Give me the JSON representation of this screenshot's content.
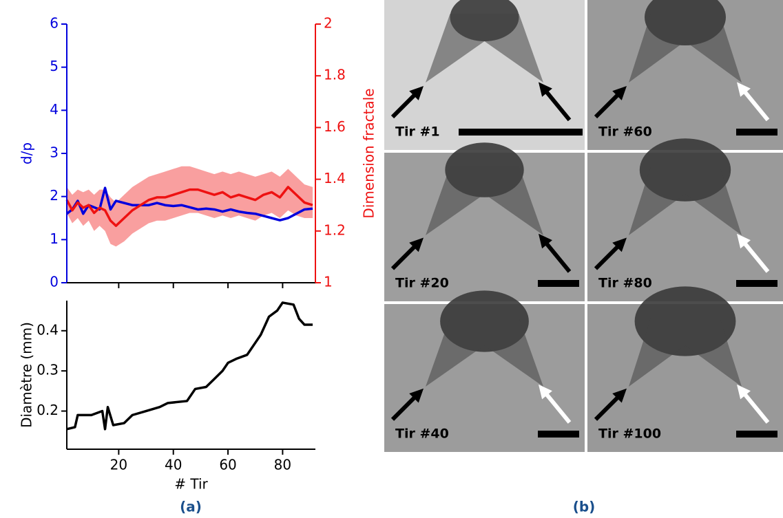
{
  "chart_data": [
    {
      "type": "line",
      "x": [
        1,
        3,
        5,
        7,
        9,
        11,
        13,
        15,
        17,
        19,
        22,
        25,
        28,
        31,
        34,
        37,
        40,
        43,
        46,
        49,
        52,
        55,
        58,
        61,
        64,
        67,
        70,
        73,
        76,
        79,
        82,
        85,
        88,
        91
      ],
      "xlim": [
        1,
        92
      ],
      "xticks": [
        20,
        40,
        60,
        80
      ],
      "ylabel": "d/p",
      "ylim": [
        0,
        6
      ],
      "yticks": [
        0,
        1,
        2,
        3,
        4,
        5,
        6
      ],
      "y2label": "Dimension fractale",
      "y2lim": [
        1,
        2
      ],
      "y2ticks": [
        1,
        1.2,
        1.4,
        1.6,
        1.8,
        2
      ],
      "series": [
        {
          "color": "#0000dd",
          "values": [
            1.6,
            1.7,
            1.9,
            1.6,
            1.8,
            1.75,
            1.7,
            2.2,
            1.7,
            1.9,
            1.85,
            1.8,
            1.8,
            1.8,
            1.85,
            1.8,
            1.78,
            1.8,
            1.75,
            1.7,
            1.72,
            1.7,
            1.65,
            1.7,
            1.65,
            1.62,
            1.6,
            1.55,
            1.5,
            1.45,
            1.5,
            1.6,
            1.7,
            1.72
          ]
        },
        {
          "color": "#ee1111",
          "band_color": "#f77f7f",
          "axis": "y2",
          "values": [
            1.32,
            1.28,
            1.31,
            1.29,
            1.3,
            1.27,
            1.29,
            1.28,
            1.24,
            1.22,
            1.25,
            1.28,
            1.3,
            1.32,
            1.33,
            1.33,
            1.34,
            1.35,
            1.36,
            1.36,
            1.35,
            1.34,
            1.35,
            1.33,
            1.34,
            1.33,
            1.32,
            1.34,
            1.35,
            1.33,
            1.37,
            1.34,
            1.31,
            1.3
          ],
          "lower": [
            1.27,
            1.23,
            1.25,
            1.22,
            1.24,
            1.2,
            1.22,
            1.2,
            1.15,
            1.14,
            1.16,
            1.19,
            1.21,
            1.23,
            1.24,
            1.24,
            1.25,
            1.26,
            1.27,
            1.27,
            1.26,
            1.25,
            1.26,
            1.25,
            1.26,
            1.25,
            1.24,
            1.26,
            1.27,
            1.25,
            1.28,
            1.26,
            1.25,
            1.25
          ],
          "upper": [
            1.37,
            1.34,
            1.36,
            1.35,
            1.36,
            1.34,
            1.36,
            1.36,
            1.33,
            1.31,
            1.34,
            1.37,
            1.39,
            1.41,
            1.42,
            1.43,
            1.44,
            1.45,
            1.45,
            1.44,
            1.43,
            1.42,
            1.43,
            1.42,
            1.43,
            1.42,
            1.41,
            1.42,
            1.43,
            1.41,
            1.44,
            1.41,
            1.38,
            1.37
          ]
        }
      ]
    },
    {
      "type": "line",
      "x": [
        1,
        4,
        5,
        7,
        10,
        14,
        15,
        16,
        18,
        22,
        25,
        30,
        35,
        38,
        45,
        48,
        52,
        55,
        58,
        60,
        63,
        67,
        70,
        72,
        75,
        78,
        80,
        84,
        86,
        88,
        91
      ],
      "xlim": [
        1,
        92
      ],
      "xticks": [
        20,
        40,
        60,
        80
      ],
      "xlabel": "# Tir",
      "ylabel": "Diamètre (mm)",
      "ylim": [
        0.105,
        0.475
      ],
      "yticks": [
        0.2,
        0.3,
        0.4
      ],
      "series": [
        {
          "color": "#000000",
          "values": [
            0.155,
            0.16,
            0.19,
            0.19,
            0.19,
            0.2,
            0.155,
            0.21,
            0.165,
            0.17,
            0.19,
            0.2,
            0.21,
            0.22,
            0.225,
            0.255,
            0.26,
            0.28,
            0.3,
            0.32,
            0.33,
            0.34,
            0.37,
            0.39,
            0.435,
            0.45,
            0.47,
            0.465,
            0.43,
            0.415,
            0.415
          ]
        }
      ]
    }
  ],
  "captions": [
    "(a)",
    "(b)"
  ],
  "panels": [
    {
      "label": "Tir #1"
    },
    {
      "label": "Tir #60"
    },
    {
      "label": "Tir #20"
    },
    {
      "label": "Tir #80"
    },
    {
      "label": "Tir #40"
    },
    {
      "label": "Tir #100"
    }
  ]
}
